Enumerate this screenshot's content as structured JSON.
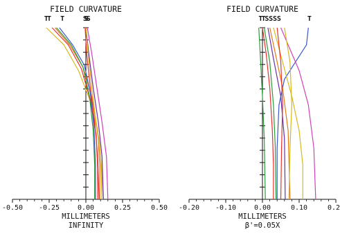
{
  "chart_data": [
    {
      "type": "line",
      "title": "FIELD CURVATURE",
      "xlabel": "MILLIMETERS",
      "caption": "INFINITY",
      "xlim": [
        -0.5,
        0.5
      ],
      "xticks": [
        "-0.50",
        "-0.25",
        "0.00",
        "0.25",
        "0.50"
      ],
      "xtick_values": [
        -0.5,
        -0.25,
        0.0,
        0.25,
        0.5
      ],
      "y_axis_ticks": 14,
      "grid": false,
      "legend_labels": [
        {
          "text": "T",
          "color": "#e8302a",
          "x": -0.27
        },
        {
          "text": "T",
          "color": "#e07a1a",
          "x": -0.25
        },
        {
          "text": "T",
          "color": "#3a56c9",
          "x": -0.16
        },
        {
          "text": "S",
          "color": "#d8b81e",
          "x": -0.005
        },
        {
          "text": "S",
          "color": "#e07a1a",
          "x": 0.005
        },
        {
          "text": "S",
          "color": "#6a2fa8",
          "x": 0.018
        }
      ],
      "series": [
        {
          "color": "#d8b81e",
          "points": [
            [
              -0.27,
              1.0
            ],
            [
              -0.15,
              0.9
            ],
            [
              -0.05,
              0.75
            ],
            [
              0.04,
              0.55
            ],
            [
              0.09,
              0.35
            ],
            [
              0.11,
              0.15
            ],
            [
              0.11,
              0.0
            ]
          ]
        },
        {
          "color": "#e8302a",
          "points": [
            [
              -0.23,
              1.0
            ],
            [
              -0.12,
              0.9
            ],
            [
              -0.03,
              0.76
            ],
            [
              0.03,
              0.58
            ],
            [
              0.07,
              0.38
            ],
            [
              0.08,
              0.18
            ],
            [
              0.08,
              0.0
            ]
          ]
        },
        {
          "color": "#e07a1a",
          "points": [
            [
              -0.21,
              1.0
            ],
            [
              -0.11,
              0.9
            ],
            [
              -0.02,
              0.77
            ],
            [
              0.04,
              0.6
            ],
            [
              0.08,
              0.4
            ],
            [
              0.095,
              0.2
            ],
            [
              0.095,
              0.0
            ]
          ]
        },
        {
          "color": "#3a56c9",
          "points": [
            [
              -0.18,
              1.0
            ],
            [
              -0.09,
              0.9
            ],
            [
              -0.01,
              0.78
            ],
            [
              0.03,
              0.62
            ],
            [
              0.055,
              0.42
            ],
            [
              0.065,
              0.2
            ],
            [
              0.065,
              0.0
            ]
          ]
        },
        {
          "color": "#2e9a3a",
          "points": [
            [
              -0.2,
              1.0
            ],
            [
              -0.1,
              0.9
            ],
            [
              -0.02,
              0.77
            ],
            [
              0.025,
              0.6
            ],
            [
              0.05,
              0.4
            ],
            [
              0.06,
              0.2
            ],
            [
              0.06,
              0.0
            ]
          ]
        },
        {
          "color": "#e8302a",
          "points": [
            [
              -0.005,
              1.0
            ],
            [
              0.005,
              0.85
            ],
            [
              0.03,
              0.65
            ],
            [
              0.06,
              0.45
            ],
            [
              0.08,
              0.25
            ],
            [
              0.09,
              0.0
            ]
          ]
        },
        {
          "color": "#6a2fa8",
          "points": [
            [
              0.0,
              1.0
            ],
            [
              0.02,
              0.85
            ],
            [
              0.05,
              0.65
            ],
            [
              0.085,
              0.45
            ],
            [
              0.11,
              0.25
            ],
            [
              0.12,
              0.0
            ]
          ]
        },
        {
          "color": "#d040b8",
          "points": [
            [
              0.01,
              1.0
            ],
            [
              0.04,
              0.85
            ],
            [
              0.075,
              0.65
            ],
            [
              0.11,
              0.45
            ],
            [
              0.14,
              0.25
            ],
            [
              0.15,
              0.0
            ]
          ]
        },
        {
          "color": "#d8b81e",
          "points": [
            [
              0.0,
              1.0
            ],
            [
              0.015,
              0.85
            ],
            [
              0.04,
              0.65
            ],
            [
              0.07,
              0.45
            ],
            [
              0.1,
              0.25
            ],
            [
              0.11,
              0.0
            ]
          ]
        }
      ]
    },
    {
      "type": "line",
      "title": "FIELD CURVATURE",
      "xlabel": "MILLIMETERS",
      "caption": "β'=0.05X",
      "xlim": [
        -0.2,
        0.2
      ],
      "xticks": [
        "-0.20",
        "-0.10",
        "0.00",
        "0.10",
        "0.20"
      ],
      "xtick_values": [
        -0.2,
        -0.1,
        0.0,
        0.1,
        0.2
      ],
      "y_axis_ticks": 14,
      "grid": false,
      "legend_labels": [
        {
          "text": "T",
          "color": "#d8b81e",
          "x": -0.005
        },
        {
          "text": "T",
          "color": "#2e9a3a",
          "x": 0.003
        },
        {
          "text": "S",
          "color": "#e8302a",
          "x": 0.012
        },
        {
          "text": "S",
          "color": "#e07a1a",
          "x": 0.023
        },
        {
          "text": "S",
          "color": "#d8b81e",
          "x": 0.034
        },
        {
          "text": "S",
          "color": "#d040b8",
          "x": 0.045
        },
        {
          "text": "T",
          "color": "#3a56c9",
          "x": 0.128
        }
      ],
      "series": [
        {
          "color": "#3a56c9",
          "points": [
            [
              0.125,
              1.0
            ],
            [
              0.12,
              0.9
            ],
            [
              0.09,
              0.8
            ],
            [
              0.06,
              0.7
            ],
            [
              0.045,
              0.55
            ],
            [
              0.04,
              0.3
            ],
            [
              0.04,
              0.0
            ]
          ]
        },
        {
          "color": "#d040b8",
          "points": [
            [
              0.05,
              1.0
            ],
            [
              0.07,
              0.9
            ],
            [
              0.1,
              0.75
            ],
            [
              0.125,
              0.55
            ],
            [
              0.14,
              0.3
            ],
            [
              0.145,
              0.0
            ]
          ]
        },
        {
          "color": "#e8302a",
          "points": [
            [
              0.0,
              1.0
            ],
            [
              0.01,
              0.85
            ],
            [
              0.02,
              0.65
            ],
            [
              0.027,
              0.4
            ],
            [
              0.03,
              0.2
            ],
            [
              0.03,
              0.0
            ]
          ]
        },
        {
          "color": "#2e9a3a",
          "points": [
            [
              -0.01,
              1.0
            ],
            [
              -0.005,
              0.8
            ],
            [
              0.0,
              0.6
            ],
            [
              0.005,
              0.35
            ],
            [
              0.008,
              0.0
            ]
          ]
        },
        {
          "color": "#e07a1a",
          "points": [
            [
              0.02,
              1.0
            ],
            [
              0.035,
              0.85
            ],
            [
              0.055,
              0.65
            ],
            [
              0.07,
              0.4
            ],
            [
              0.075,
              0.0
            ]
          ]
        },
        {
          "color": "#d8b81e",
          "points": [
            [
              0.03,
              1.0
            ],
            [
              0.055,
              0.8
            ],
            [
              0.08,
              0.6
            ],
            [
              0.1,
              0.4
            ],
            [
              0.11,
              0.2
            ],
            [
              0.11,
              0.0
            ]
          ]
        },
        {
          "color": "#6a2fa8",
          "points": [
            [
              0.015,
              1.0
            ],
            [
              0.03,
              0.82
            ],
            [
              0.05,
              0.6
            ],
            [
              0.06,
              0.35
            ],
            [
              0.062,
              0.0
            ]
          ]
        },
        {
          "color": "#2e9a3a",
          "points": [
            [
              0.005,
              1.0
            ],
            [
              0.02,
              0.8
            ],
            [
              0.03,
              0.55
            ],
            [
              0.035,
              0.3
            ],
            [
              0.037,
              0.0
            ]
          ]
        },
        {
          "color": "#e8302a",
          "points": [
            [
              0.04,
              1.0
            ],
            [
              0.05,
              0.8
            ],
            [
              0.055,
              0.55
            ],
            [
              0.052,
              0.3
            ],
            [
              0.05,
              0.0
            ]
          ]
        },
        {
          "color": "#d8b81e",
          "points": [
            [
              0.06,
              1.0
            ],
            [
              0.075,
              0.8
            ],
            [
              0.08,
              0.55
            ],
            [
              0.075,
              0.3
            ],
            [
              0.072,
              0.0
            ]
          ]
        }
      ]
    }
  ]
}
